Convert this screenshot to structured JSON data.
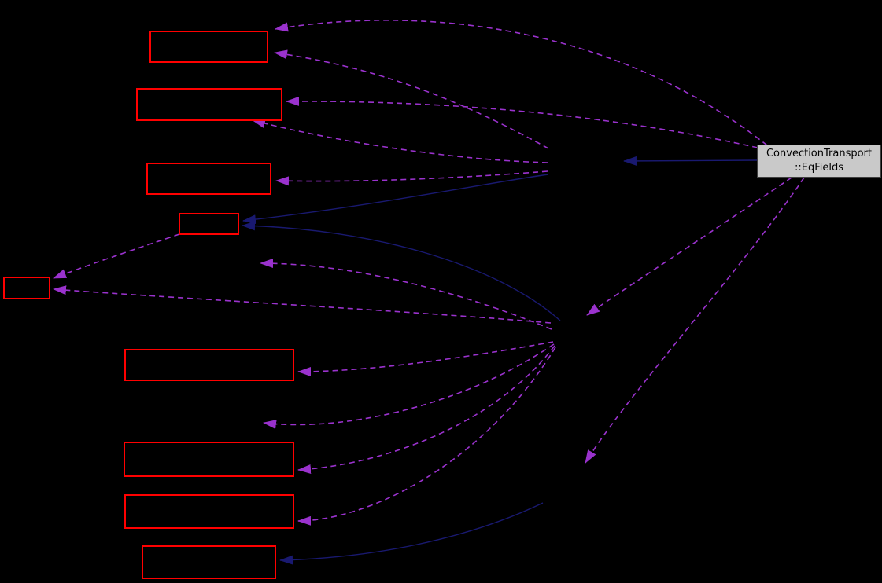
{
  "diagram": {
    "type": "collaboration-graph",
    "background_color": "#000000",
    "red_box_border_color": "#ff0000",
    "edge_colors": {
      "inheritance": "#191970",
      "usage": "#9a32cd"
    },
    "main_node": {
      "id": "main",
      "label_line1": "ConvectionTransport",
      "label_line2": "::EqFields",
      "fill": "#c9c9c9",
      "border": "#404040",
      "text_color": "#000000"
    },
    "red_boxes": [
      {
        "id": "box1",
        "label": ""
      },
      {
        "id": "box2",
        "label": ""
      },
      {
        "id": "box3",
        "label": ""
      },
      {
        "id": "box4",
        "label": ""
      },
      {
        "id": "box5",
        "label": ""
      },
      {
        "id": "box6",
        "label": ""
      },
      {
        "id": "box7",
        "label": ""
      },
      {
        "id": "box8",
        "label": ""
      },
      {
        "id": "box9",
        "label": ""
      }
    ],
    "edges": [
      {
        "id": "e1",
        "from": "main",
        "to": "hidden-node-top",
        "type": "inheritance"
      },
      {
        "id": "e2",
        "from": "hidden-node-top",
        "to": "box4",
        "type": "inheritance"
      },
      {
        "id": "e3",
        "from": "hidden-node-middle",
        "to": "box4",
        "type": "inheritance"
      },
      {
        "id": "e4",
        "from": "hidden-node-bottom",
        "to": "box9",
        "type": "inheritance"
      },
      {
        "id": "e5",
        "from": "main",
        "to": "box1",
        "type": "usage"
      },
      {
        "id": "e6",
        "from": "hidden-node-top",
        "to": "box1",
        "type": "usage"
      },
      {
        "id": "e7",
        "from": "main",
        "to": "box2",
        "type": "usage"
      },
      {
        "id": "e8",
        "from": "hidden-node-top",
        "to": "box2",
        "type": "usage"
      },
      {
        "id": "e9",
        "from": "hidden-node-top",
        "to": "box3",
        "type": "usage"
      },
      {
        "id": "e10",
        "from": "box4",
        "to": "box5",
        "type": "usage"
      },
      {
        "id": "e11",
        "from": "hidden-node-middle",
        "to": "box5",
        "type": "usage"
      },
      {
        "id": "e12",
        "from": "hidden-node-middle",
        "to": "hidden-left-node-1",
        "type": "usage"
      },
      {
        "id": "e13",
        "from": "hidden-node-middle",
        "to": "box6",
        "type": "usage"
      },
      {
        "id": "e14",
        "from": "hidden-node-middle",
        "to": "hidden-left-node-2",
        "type": "usage"
      },
      {
        "id": "e15",
        "from": "hidden-node-middle",
        "to": "box7",
        "type": "usage"
      },
      {
        "id": "e16",
        "from": "hidden-node-middle",
        "to": "box8",
        "type": "usage"
      },
      {
        "id": "e17",
        "from": "main",
        "to": "hidden-node-middle",
        "type": "usage"
      },
      {
        "id": "e18",
        "from": "main",
        "to": "hidden-node-bottom",
        "type": "usage"
      }
    ]
  }
}
